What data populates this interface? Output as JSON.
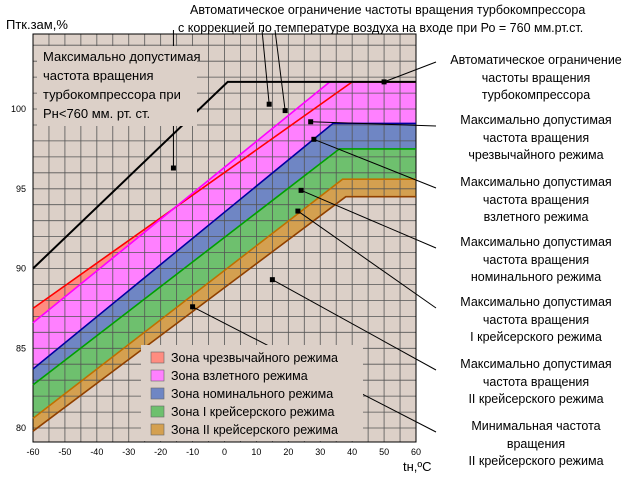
{
  "chart_data": {
    "type": "area",
    "ylabel": "Птк.зам,%",
    "xlabel": "tн,ºС",
    "xlim": [
      -60,
      60
    ],
    "ylim": [
      79,
      104
    ],
    "x_ticks": [
      -60,
      -50,
      -40,
      -30,
      -20,
      -10,
      0,
      10,
      20,
      30,
      40,
      50,
      60
    ],
    "x_tick_labels": [
      "-60",
      "-50",
      "-40",
      "-30",
      "-20",
      "-10",
      "0",
      "10",
      "20",
      "30",
      "40",
      "50",
      "60"
    ],
    "y_ticks": [
      80,
      85,
      90,
      95,
      100
    ],
    "y_tick_labels": [
      "80",
      "85",
      "90",
      "95",
      "100"
    ],
    "grid": true,
    "lines": [
      {
        "id": "limit_760",
        "color": "#000000",
        "points": [
          [
            -60,
            90.0
          ],
          [
            1,
            101.7
          ],
          [
            60,
            101.7
          ]
        ]
      },
      {
        "id": "limit_corrected",
        "color": "#000000",
        "points": [
          [
            -60,
            90.0
          ],
          [
            1,
            101.7
          ],
          [
            60,
            101.7
          ]
        ]
      }
    ],
    "zones": [
      {
        "name": "Зона чрезвычайного режима",
        "color": "#ff8c80",
        "upper": [
          [
            -60,
            87.5
          ],
          [
            40,
            101.7
          ],
          [
            60,
            101.7
          ]
        ],
        "lower": [
          [
            -60,
            86.6
          ],
          [
            33,
            101.7
          ],
          [
            60,
            101.7
          ]
        ]
      },
      {
        "name": "Зона взлетного режима",
        "color": "#ff80ff",
        "upper": [
          [
            -60,
            86.6
          ],
          [
            33,
            101.7
          ],
          [
            60,
            101.7
          ]
        ],
        "lower": [
          [
            -60,
            83.7
          ],
          [
            34,
            99.1
          ],
          [
            60,
            99.1
          ]
        ]
      },
      {
        "name": "Зона номинального режима",
        "color": "#6f86c4",
        "upper": [
          [
            -60,
            83.7
          ],
          [
            34,
            99.1
          ],
          [
            60,
            99.1
          ]
        ],
        "lower": [
          [
            -60,
            82.7
          ],
          [
            36,
            97.5
          ],
          [
            60,
            97.5
          ]
        ]
      },
      {
        "name": "Зона I крейсерского режима",
        "color": "#6ec06e",
        "upper": [
          [
            -60,
            82.7
          ],
          [
            36,
            97.5
          ],
          [
            60,
            97.5
          ]
        ],
        "lower": [
          [
            -60,
            80.6
          ],
          [
            37,
            95.6
          ],
          [
            60,
            95.6
          ]
        ]
      },
      {
        "name": "Зона II крейсерского режима",
        "color": "#d4a050",
        "upper": [
          [
            -60,
            80.6
          ],
          [
            37,
            95.6
          ],
          [
            60,
            95.6
          ]
        ],
        "lower": [
          [
            -60,
            79.8
          ],
          [
            38,
            94.5
          ],
          [
            60,
            94.5
          ]
        ]
      }
    ],
    "boundary_lines": [
      {
        "color": "#ff0000",
        "points": [
          [
            -60,
            87.5
          ],
          [
            40,
            101.7
          ],
          [
            60,
            101.7
          ]
        ]
      },
      {
        "color": "#ff00ff",
        "points": [
          [
            -60,
            86.6
          ],
          [
            33,
            101.7
          ]
        ]
      },
      {
        "color": "#0000a0",
        "points": [
          [
            -60,
            83.7
          ],
          [
            34,
            99.1
          ],
          [
            60,
            99.1
          ]
        ]
      },
      {
        "color": "#00a000",
        "points": [
          [
            -60,
            82.7
          ],
          [
            36,
            97.5
          ],
          [
            60,
            97.5
          ]
        ]
      },
      {
        "color": "#c07000",
        "points": [
          [
            -60,
            80.6
          ],
          [
            37,
            95.6
          ],
          [
            60,
            95.6
          ]
        ]
      },
      {
        "color": "#904000",
        "points": [
          [
            -60,
            79.8
          ],
          [
            38,
            94.5
          ],
          [
            60,
            94.5
          ]
        ]
      }
    ],
    "legend": {
      "placement": "bottom-center",
      "entries": [
        {
          "label": "Зона чрезвычайного режима",
          "color": "#ff8c80"
        },
        {
          "label": "Зона взлетного режима",
          "color": "#ff80ff"
        },
        {
          "label": "Зона номинального режима",
          "color": "#6f86c4"
        },
        {
          "label": "Зона I крейсерского режима",
          "color": "#6ec06e"
        },
        {
          "label": "Зона II крейсерского режима",
          "color": "#d4a050"
        }
      ]
    },
    "inset_note": [
      "Максимально допустимая",
      "частота вращения",
      "турбокомпрессора при",
      "Рн<760 мм. рт. ст."
    ],
    "annotations": {
      "top": [
        "Автоматическое ограничение частоты вращения турбокомпрессора",
        "с коррекцией по температуре воздуха на входе при Ро = 760 мм.рт.ст."
      ],
      "right": [
        [
          "Автоматическое ограничение",
          "частоты вращения",
          "турбокомпрессора"
        ],
        [
          "Максимально допустимая",
          "частота вращения",
          "чрезвычайного режима"
        ],
        [
          "Максимально допустимая",
          "частота вращения",
          "взлетного режима"
        ],
        [
          "Максимально допустимая",
          "частота вращения",
          "номинального режима"
        ],
        [
          "Максимально допустимая",
          "частота вращения",
          "I крейсерского режима"
        ],
        [
          "Максимально допустимая",
          "частота вращения",
          "II крейсерского режима"
        ],
        [
          "Минимальная частота",
          "вращения",
          "II крейсерского режима"
        ]
      ]
    },
    "colors": {
      "plot_bg": "#dcd0c8",
      "grid": "#555555",
      "axis": "#000000"
    }
  }
}
